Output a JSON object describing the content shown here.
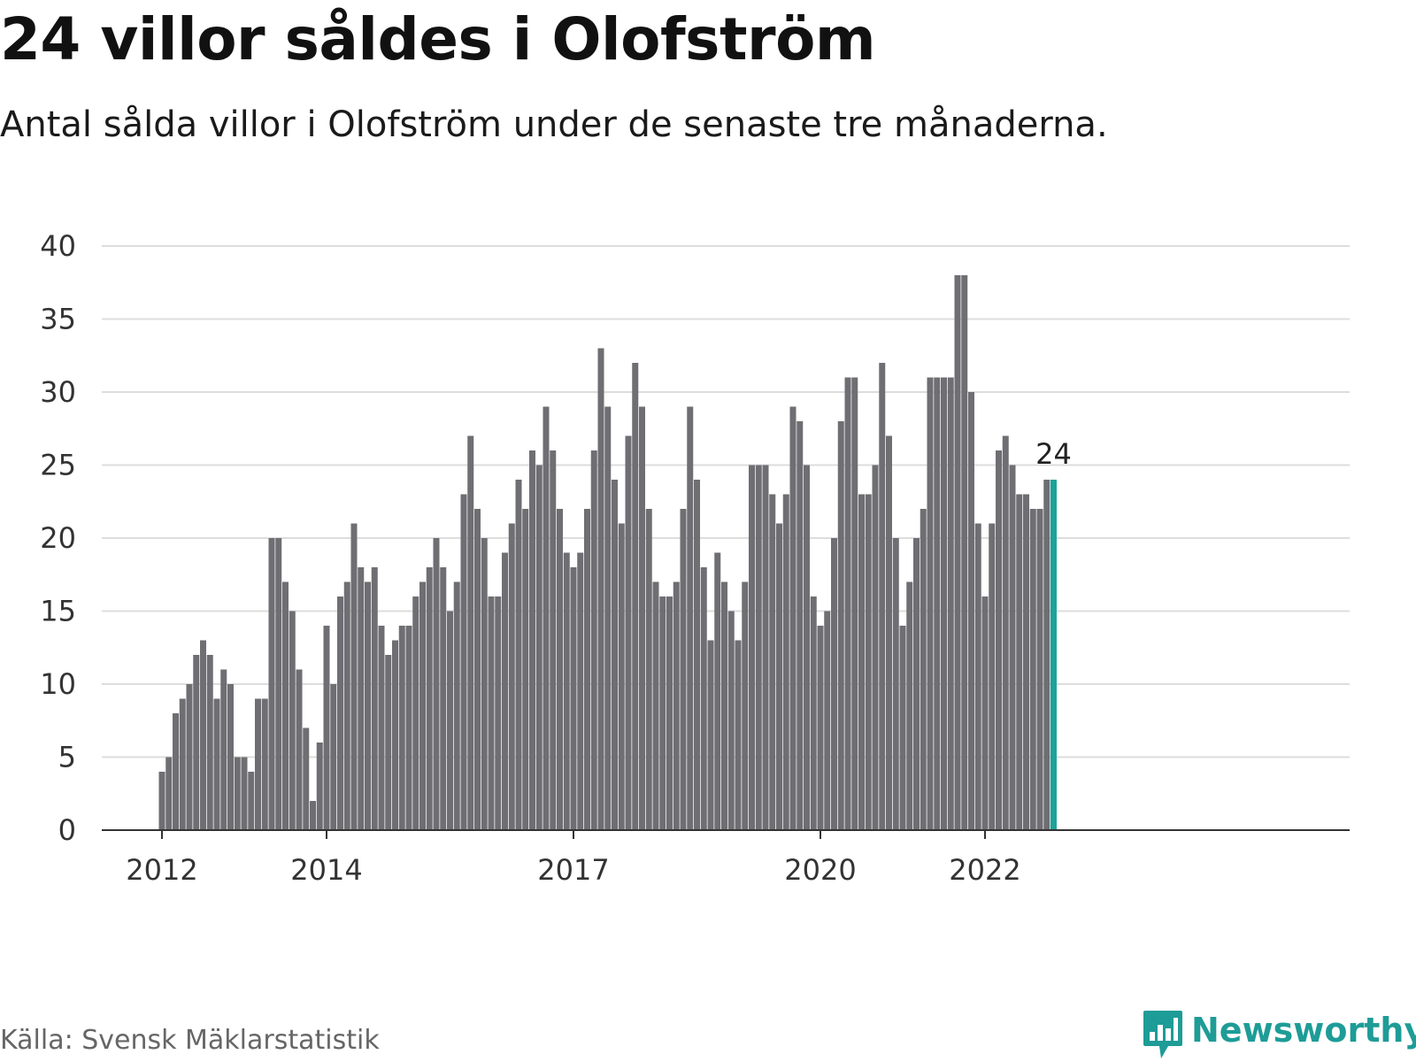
{
  "title": "24 villor såldes i Olofström",
  "subtitle": "Antal sålda villor i Olofström under de senaste tre månaderna.",
  "source": "Källa: Svensk Mäklarstatistik",
  "brand": "Newsworthy",
  "colors": {
    "bar": "#6e6e73",
    "highlight": "#1aa39a",
    "brand": "#1e9c97",
    "grid": "#dddddd"
  },
  "chart_data": {
    "type": "bar",
    "title": "24 villor såldes i Olofström",
    "subtitle": "Antal sålda villor i Olofström under de senaste tre månaderna.",
    "xlabel": "",
    "ylabel": "",
    "ylim": [
      0,
      40
    ],
    "yticks": [
      0,
      5,
      10,
      15,
      20,
      25,
      30,
      35,
      40
    ],
    "grid": true,
    "x_start": "2012-01",
    "x_end": "2022-12",
    "x_ticks": [
      {
        "label": "2012",
        "at": "2012-01"
      },
      {
        "label": "2014",
        "at": "2014-01"
      },
      {
        "label": "2017",
        "at": "2017-01"
      },
      {
        "label": "2020",
        "at": "2020-01"
      },
      {
        "label": "2022",
        "at": "2022-01"
      }
    ],
    "values": [
      4,
      5,
      8,
      9,
      10,
      12,
      13,
      12,
      9,
      11,
      10,
      5,
      5,
      4,
      9,
      9,
      20,
      20,
      17,
      15,
      11,
      7,
      2,
      6,
      14,
      10,
      16,
      17,
      21,
      18,
      17,
      18,
      14,
      12,
      13,
      14,
      14,
      16,
      17,
      18,
      20,
      18,
      15,
      17,
      23,
      27,
      22,
      20,
      16,
      16,
      19,
      21,
      24,
      22,
      26,
      25,
      29,
      26,
      22,
      19,
      18,
      19,
      22,
      26,
      33,
      29,
      24,
      21,
      27,
      32,
      29,
      22,
      17,
      16,
      16,
      17,
      22,
      29,
      24,
      18,
      13,
      19,
      17,
      15,
      13,
      17,
      25,
      25,
      25,
      23,
      21,
      23,
      29,
      28,
      25,
      16,
      14,
      15,
      20,
      28,
      31,
      31,
      23,
      23,
      25,
      32,
      27,
      20,
      14,
      17,
      20,
      22,
      31,
      31,
      31,
      31,
      38,
      38,
      30,
      21,
      16,
      21,
      26,
      27,
      25,
      23,
      23,
      22,
      22,
      24,
      24
    ],
    "highlight_last": true,
    "last_value_label": "24"
  }
}
